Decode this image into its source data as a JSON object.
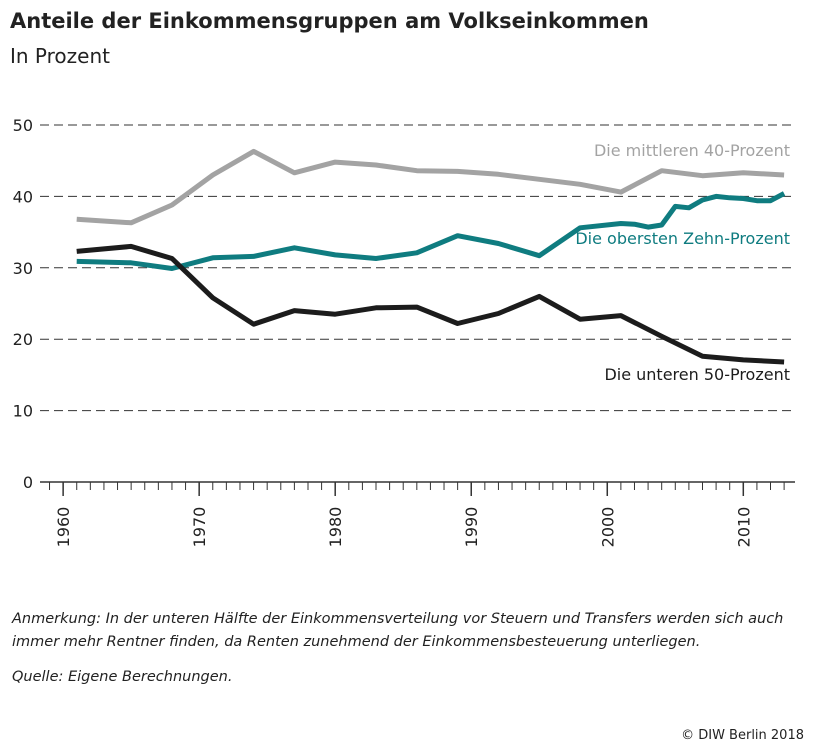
{
  "chart_data": {
    "type": "line",
    "title": "Anteile der Einkommensgruppen am Volkseinkommen",
    "subtitle": "In Prozent",
    "xlim": [
      1958.3,
      2013.8
    ],
    "xticks": [
      1960,
      1970,
      1980,
      1990,
      2000,
      2010
    ],
    "ylim": [
      0,
      50
    ],
    "yticks": [
      0,
      10,
      20,
      30,
      40,
      50
    ],
    "grid": true,
    "series": [
      {
        "name": "Die mittleren 40-Prozent",
        "color": "#a3a3a3",
        "x": [
          1961,
          1965,
          1968,
          1971,
          1974,
          1977,
          1980,
          1983,
          1986,
          1989,
          1992,
          1995,
          1998,
          2001,
          2004,
          2007,
          2010,
          2013
        ],
        "values": [
          36.8,
          36.3,
          38.8,
          43.0,
          46.3,
          43.3,
          44.8,
          44.4,
          43.6,
          43.5,
          43.1,
          42.4,
          41.7,
          40.6,
          43.6,
          42.9,
          43.3,
          43.0
        ]
      },
      {
        "name": "Die obersten Zehn-Prozent",
        "color": "#0f7c80",
        "x": [
          1961,
          1965,
          1968,
          1971,
          1974,
          1977,
          1980,
          1983,
          1986,
          1989,
          1992,
          1995,
          1998,
          2001,
          2002,
          2003,
          2004,
          2005,
          2006,
          2007,
          2008,
          2009,
          2010,
          2011,
          2012,
          2013
        ],
        "values": [
          30.9,
          30.7,
          29.9,
          31.4,
          31.6,
          32.8,
          31.8,
          31.3,
          32.1,
          34.5,
          33.4,
          31.7,
          35.6,
          36.2,
          36.1,
          35.7,
          36.0,
          38.6,
          38.4,
          39.5,
          40.0,
          39.8,
          39.7,
          39.4,
          39.4,
          40.4
        ]
      },
      {
        "name": "Die unteren 50-Prozent",
        "color": "#1c1c1c",
        "x": [
          1961,
          1965,
          1968,
          1971,
          1974,
          1977,
          1980,
          1983,
          1986,
          1989,
          1992,
          1995,
          1998,
          2001,
          2004,
          2007,
          2010,
          2013
        ],
        "values": [
          32.3,
          33.0,
          31.3,
          25.8,
          22.1,
          24.0,
          23.5,
          24.4,
          24.5,
          22.2,
          23.6,
          26.0,
          22.8,
          23.3,
          20.4,
          17.6,
          17.1,
          16.8
        ]
      }
    ],
    "note": "Anmerkung: In der unteren Hälfte der Einkommensverteilung vor Steuern und Transfers werden sich auch immer mehr Rentner finden, da Renten zunehmend der Einkommensbesteuerung unterliegen.",
    "source": "Quelle: Eigene Berechnungen.",
    "copyright": "© DIW Berlin 2018"
  }
}
